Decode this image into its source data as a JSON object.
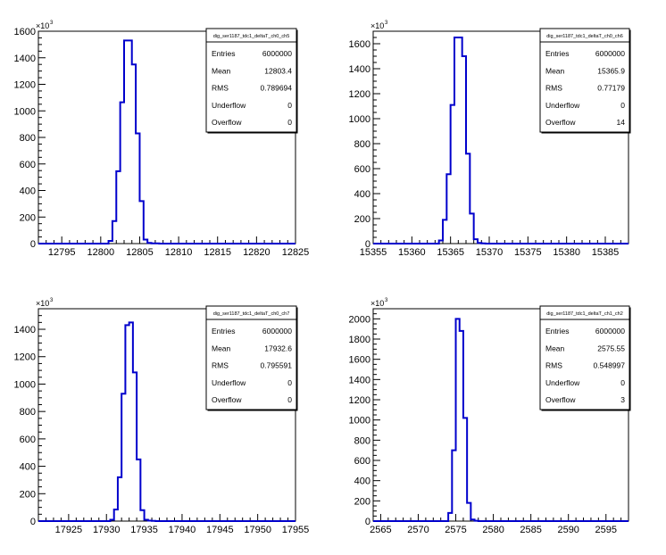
{
  "chart_data": [
    {
      "type": "histogram",
      "stats": {
        "title": "dig_ser1187_tdc1_deltaT_ch0_ch5",
        "rows": [
          {
            "label": "Entries",
            "value": "6000000"
          },
          {
            "label": "Mean",
            "value": "12803.4"
          },
          {
            "label": "RMS",
            "value": "0.789694"
          },
          {
            "label": "Underflow",
            "value": "0"
          },
          {
            "label": "Overflow",
            "value": "0"
          }
        ]
      },
      "y_multiplier": "×10",
      "y_multiplier_exp": "3",
      "xlim": [
        12792,
        12825
      ],
      "ylim": [
        0,
        1600
      ],
      "x_ticks": [
        12795,
        12800,
        12805,
        12810,
        12815,
        12820,
        12825
      ],
      "x_tick_labels": [
        "12795",
        "12800",
        "12805",
        "12810",
        "12815",
        "12820",
        "12825"
      ],
      "y_ticks": [
        0,
        200,
        400,
        600,
        800,
        1000,
        1200,
        1400,
        1600
      ],
      "y_tick_labels": [
        "0",
        "200",
        "400",
        "600",
        "800",
        "1000",
        "1200",
        "1400",
        "1600"
      ],
      "bin_width": 0.5,
      "bin_edges_start": 12801,
      "bin_values": [
        20,
        170,
        545,
        1065,
        1530,
        1530,
        1350,
        830,
        320,
        30,
        5,
        2,
        2
      ],
      "color": "#0000cc"
    },
    {
      "type": "histogram",
      "stats": {
        "title": "dig_ser1187_tdc1_deltaT_ch0_ch6",
        "rows": [
          {
            "label": "Entries",
            "value": "6000000"
          },
          {
            "label": "Mean",
            "value": "15365.9"
          },
          {
            "label": "RMS",
            "value": "0.77179"
          },
          {
            "label": "Underflow",
            "value": "0"
          },
          {
            "label": "Overflow",
            "value": "14"
          }
        ]
      },
      "y_multiplier": "×10",
      "y_multiplier_exp": "3",
      "xlim": [
        15355,
        15388
      ],
      "ylim": [
        0,
        1700
      ],
      "x_ticks": [
        15355,
        15360,
        15365,
        15370,
        15375,
        15380,
        15385
      ],
      "x_tick_labels": [
        "15355",
        "15360",
        "15365",
        "15370",
        "15375",
        "15380",
        "15385"
      ],
      "y_ticks": [
        0,
        200,
        400,
        600,
        800,
        1000,
        1200,
        1400,
        1600
      ],
      "y_tick_labels": [
        "0",
        "200",
        "400",
        "600",
        "800",
        "1000",
        "1200",
        "1400",
        "1600"
      ],
      "bin_width": 0.5,
      "bin_edges_start": 15363.5,
      "bin_values": [
        25,
        190,
        555,
        1110,
        1650,
        1650,
        1500,
        720,
        240,
        35,
        5,
        2
      ],
      "color": "#0000cc"
    },
    {
      "type": "histogram",
      "stats": {
        "title": "dig_ser1187_tdc1_deltaT_ch0_ch7",
        "rows": [
          {
            "label": "Entries",
            "value": "6000000"
          },
          {
            "label": "Mean",
            "value": "17932.6"
          },
          {
            "label": "RMS",
            "value": "0.795591"
          },
          {
            "label": "Underflow",
            "value": "0"
          },
          {
            "label": "Overflow",
            "value": "0"
          }
        ]
      },
      "y_multiplier": "×10",
      "y_multiplier_exp": "3",
      "xlim": [
        17921,
        17955
      ],
      "ylim": [
        0,
        1550
      ],
      "x_ticks": [
        17925,
        17930,
        17935,
        17940,
        17945,
        17950,
        17955
      ],
      "x_tick_labels": [
        "17925",
        "17930",
        "17935",
        "17940",
        "17945",
        "17950",
        "17955"
      ],
      "y_ticks": [
        0,
        200,
        400,
        600,
        800,
        1000,
        1200,
        1400
      ],
      "y_tick_labels": [
        "0",
        "200",
        "400",
        "600",
        "800",
        "1000",
        "1200",
        "1400"
      ],
      "bin_width": 0.5,
      "bin_edges_start": 17930.5,
      "bin_values": [
        10,
        85,
        320,
        930,
        1430,
        1450,
        1085,
        450,
        80,
        10,
        3,
        2
      ],
      "color": "#0000cc"
    },
    {
      "type": "histogram",
      "stats": {
        "title": "dig_ser1187_tdc1_deltaT_ch1_ch2",
        "rows": [
          {
            "label": "Entries",
            "value": "6000000"
          },
          {
            "label": "Mean",
            "value": "2575.55"
          },
          {
            "label": "RMS",
            "value": "0.548997"
          },
          {
            "label": "Underflow",
            "value": "0"
          },
          {
            "label": "Overflow",
            "value": "3"
          }
        ]
      },
      "y_multiplier": "×10",
      "y_multiplier_exp": "3",
      "xlim": [
        2564,
        2598
      ],
      "ylim": [
        0,
        2100
      ],
      "x_ticks": [
        2565,
        2570,
        2575,
        2580,
        2585,
        2590,
        2595
      ],
      "x_tick_labels": [
        "2565",
        "2570",
        "2575",
        "2580",
        "2585",
        "2590",
        "2595"
      ],
      "y_ticks": [
        0,
        200,
        400,
        600,
        800,
        1000,
        1200,
        1400,
        1600,
        1800,
        2000
      ],
      "y_tick_labels": [
        "0",
        "200",
        "400",
        "600",
        "800",
        "1000",
        "1200",
        "1400",
        "1600",
        "1800",
        "2000"
      ],
      "bin_width": 0.5,
      "bin_edges_start": 2574,
      "bin_values": [
        80,
        700,
        2000,
        1880,
        1020,
        180,
        15,
        3
      ],
      "color": "#0000cc"
    }
  ]
}
